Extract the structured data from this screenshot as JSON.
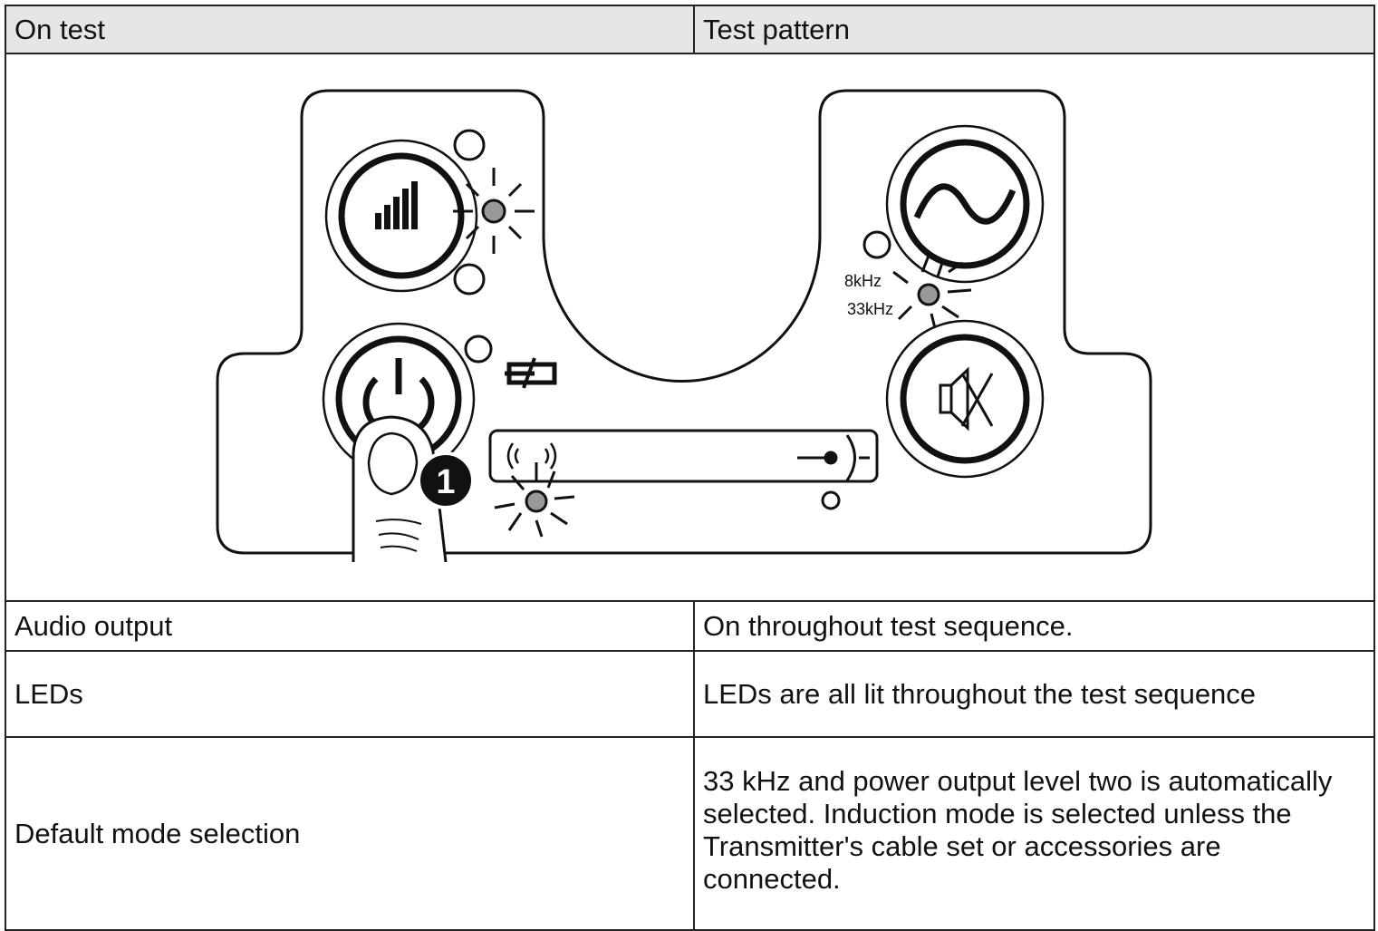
{
  "header": {
    "col1": "On test",
    "col2": "Test pattern"
  },
  "figure": {
    "labels": [
      "8kHz",
      "33kHz"
    ],
    "step": "1"
  },
  "rows": [
    [
      "Audio output",
      "On throughout test sequence."
    ],
    [
      "LEDs",
      "LEDs are all lit throughout the test sequence"
    ],
    [
      "Default mode selection",
      "33 kHz and power output level two is automatically selected. Induction mode is selected unless the Transmitter's cable set or accessories are connected."
    ]
  ]
}
